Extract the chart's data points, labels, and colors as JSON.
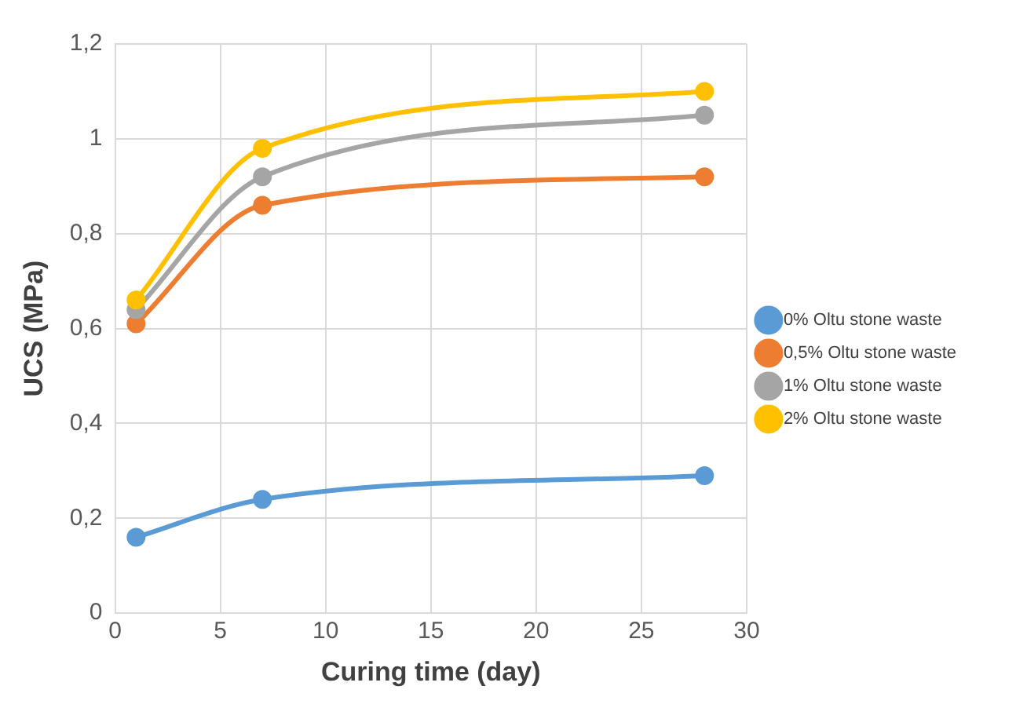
{
  "chart_data": {
    "type": "line",
    "xlabel": "Curing time (day)",
    "ylabel": "UCS (MPa)",
    "x": [
      1,
      7,
      28
    ],
    "series": [
      {
        "name": "0% Oltu stone waste",
        "color": "#5b9bd5",
        "values": [
          0.16,
          0.24,
          0.29
        ]
      },
      {
        "name": "0,5% Oltu stone waste",
        "color": "#ed7d31",
        "values": [
          0.61,
          0.86,
          0.92
        ]
      },
      {
        "name": "1% Oltu stone waste",
        "color": "#a5a5a5",
        "values": [
          0.64,
          0.92,
          1.05
        ]
      },
      {
        "name": "2% Oltu stone waste",
        "color": "#ffc000",
        "values": [
          0.66,
          0.98,
          1.1
        ]
      }
    ],
    "xlim": [
      0,
      30
    ],
    "xticks": [
      0,
      5,
      10,
      15,
      20,
      25,
      30
    ],
    "ylim": [
      0,
      1.2
    ],
    "yticks": [
      0,
      {
        "value": 0.2,
        "label": "0,2"
      },
      {
        "value": 0.4,
        "label": "0,4"
      },
      {
        "value": 0.6,
        "label": "0,6"
      },
      {
        "value": 0.8,
        "label": "0,8"
      },
      1,
      {
        "value": 1.2,
        "label": "1,2"
      }
    ],
    "grid": true,
    "legend": "right",
    "marker": "circle",
    "line_style": "solid"
  }
}
